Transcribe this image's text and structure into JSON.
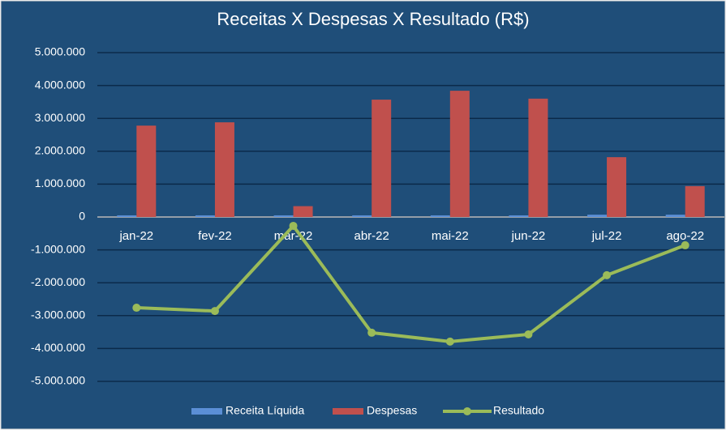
{
  "chart_data": {
    "type": "bar-line",
    "title": "Receitas X Despesas X Resultado (R$)",
    "categories": [
      "jan-22",
      "fev-22",
      "mar-22",
      "abr-22",
      "mai-22",
      "jun-22",
      "jul-22",
      "ago-22"
    ],
    "series": [
      {
        "name": "Receita Líquida",
        "type": "bar",
        "color": "#5b8fd6",
        "values": [
          50000,
          50000,
          50000,
          50000,
          50000,
          50000,
          70000,
          70000
        ]
      },
      {
        "name": "Despesas",
        "type": "bar",
        "color": "#c0504d",
        "values": [
          2780000,
          2880000,
          330000,
          3570000,
          3840000,
          3600000,
          1820000,
          940000
        ]
      },
      {
        "name": "Resultado",
        "type": "line",
        "color": "#9bbb59",
        "values": [
          -2760000,
          -2860000,
          -270000,
          -3520000,
          -3790000,
          -3570000,
          -1770000,
          -860000
        ]
      }
    ],
    "ylim": [
      -5000000,
      5000000
    ],
    "yticks": [
      {
        "value": -5000000,
        "label": "-5.000.000"
      },
      {
        "value": -4000000,
        "label": "-4.000.000"
      },
      {
        "value": -3000000,
        "label": "-3.000.000"
      },
      {
        "value": -2000000,
        "label": "-2.000.000"
      },
      {
        "value": -1000000,
        "label": "-1.000.000"
      },
      0,
      {
        "value": 1000000,
        "label": "1.000.000"
      },
      {
        "value": 2000000,
        "label": "2.000.000"
      },
      {
        "value": 3000000,
        "label": "3.000.000"
      },
      {
        "value": 4000000,
        "label": "4.000.000"
      },
      {
        "value": 5000000,
        "label": "5.000.000"
      }
    ],
    "grid": true,
    "legend": "bottom"
  }
}
